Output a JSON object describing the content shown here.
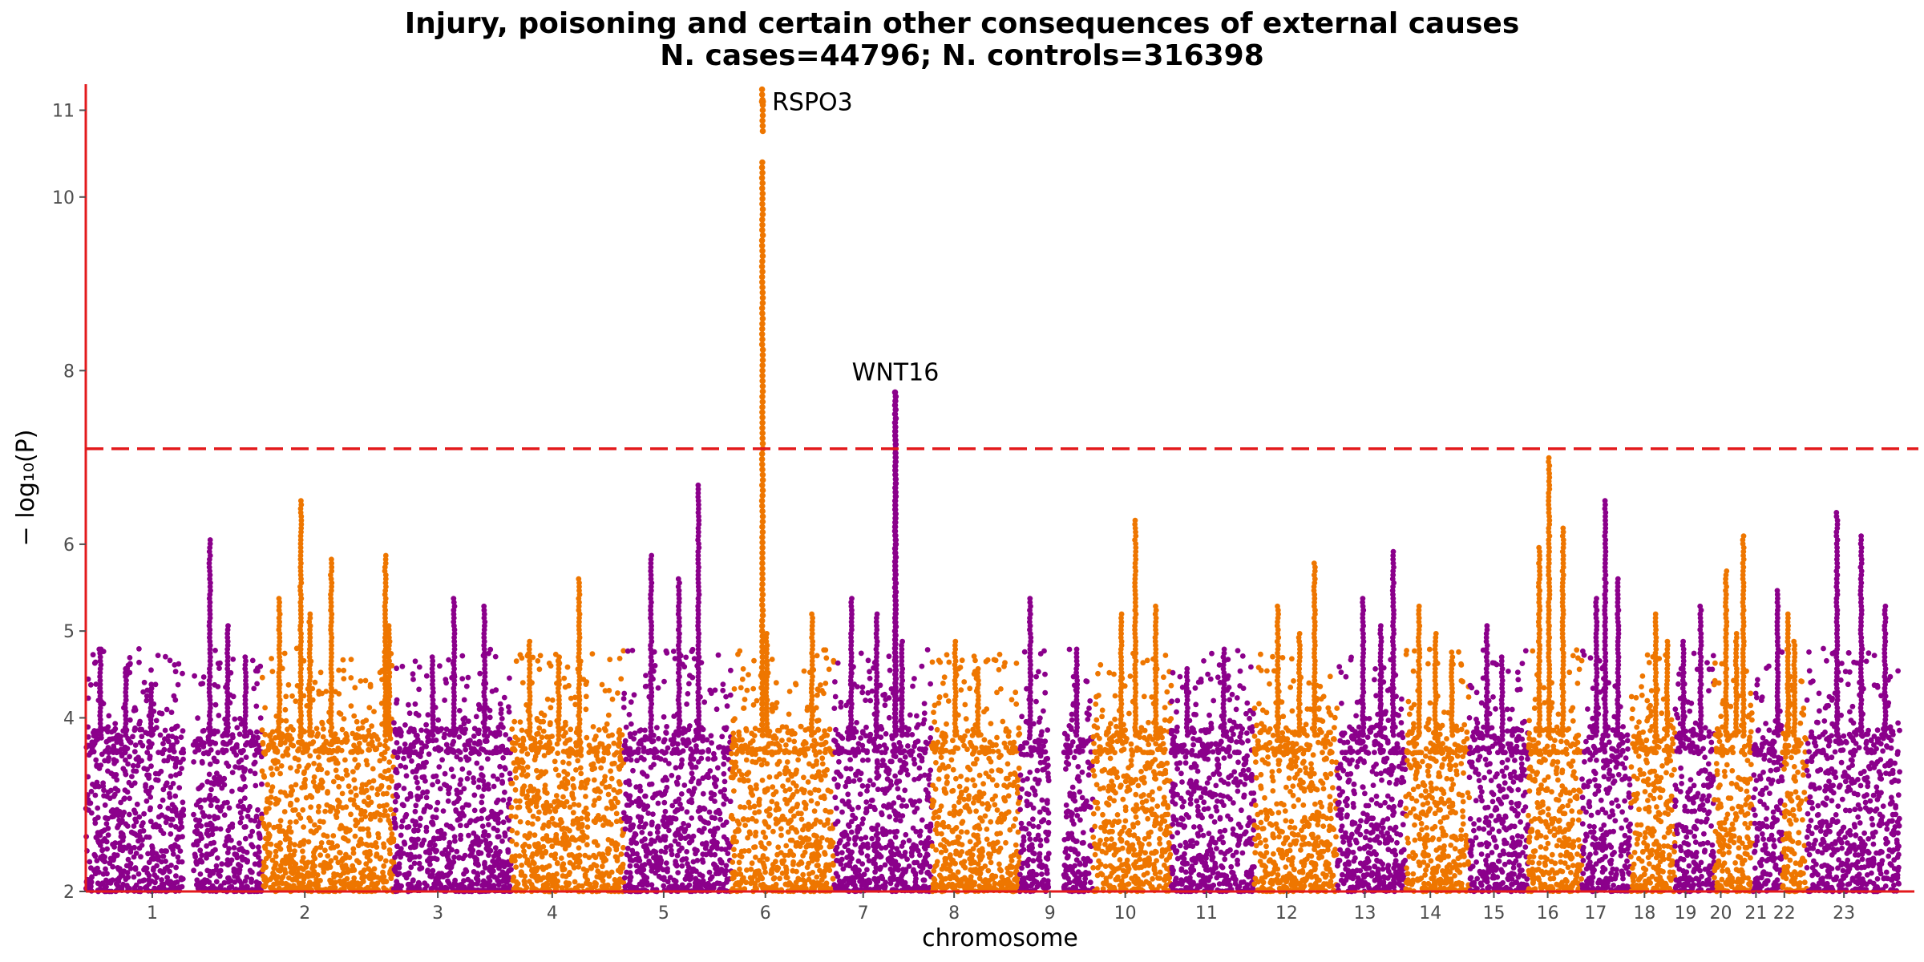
{
  "chart_data": {
    "type": "scatter",
    "subtype": "manhattan",
    "title": "Injury, poisoning and certain other consequences of external causes",
    "subtitle": "N. cases=44796; N. controls=316398",
    "xlabel": "chromosome",
    "ylabel": "− log₁₀(P)",
    "ylim": [
      2,
      11.3
    ],
    "yticks": [
      2,
      4,
      5,
      6,
      8,
      10,
      11
    ],
    "threshold": 7.1,
    "threshold_color": "#e31a1c",
    "axis_color": "#e31a1c",
    "colors": [
      "#8b008b",
      "#ee7600"
    ],
    "chromosomes": [
      {
        "label": "1",
        "start": 0,
        "end": 1,
        "max": 5.0,
        "peaks": [
          4.8,
          4.6,
          4.4
        ]
      },
      {
        "label": "",
        "start": 1.1,
        "end": 1.8,
        "max": 6.05,
        "peaks": [
          6.05,
          5.1,
          4.7
        ]
      },
      {
        "label": "2",
        "start": 1.8,
        "end": 3.0,
        "max": 6.5,
        "peaks": [
          6.5,
          5.85,
          5.4,
          5.2
        ]
      },
      {
        "label": "",
        "start": 3.0,
        "end": 3.15,
        "max": 5.9,
        "peaks": [
          5.9,
          5.1
        ]
      },
      {
        "label": "3",
        "start": 3.15,
        "end": 4.35,
        "max": 5.4,
        "peaks": [
          5.4,
          5.3,
          4.7
        ]
      },
      {
        "label": "4",
        "start": 4.35,
        "end": 5.5,
        "max": 5.6,
        "peaks": [
          5.6,
          4.9,
          4.7
        ]
      },
      {
        "label": "5",
        "start": 5.5,
        "end": 6.6,
        "max": 6.7,
        "peaks": [
          6.7,
          5.9,
          5.6
        ]
      },
      {
        "label": "6",
        "start": 6.6,
        "end": 7.65,
        "max": 11.1,
        "peaks": [
          5.2,
          5.0
        ]
      },
      {
        "label": "7",
        "start": 7.65,
        "end": 8.65,
        "max": 7.75,
        "peaks": [
          5.4,
          5.2,
          4.9
        ]
      },
      {
        "label": "8",
        "start": 8.65,
        "end": 9.55,
        "max": 5.0,
        "peaks": [
          4.9,
          4.6
        ]
      },
      {
        "label": "",
        "start": 9.55,
        "end": 9.85,
        "max": 5.4,
        "peaks": [
          5.4
        ]
      },
      {
        "label": "9",
        "start": 10.0,
        "end": 10.3,
        "max": 4.9,
        "peaks": [
          4.8
        ]
      },
      {
        "label": "10",
        "start": 10.3,
        "end": 11.1,
        "max": 6.3,
        "peaks": [
          6.3,
          5.3,
          5.2
        ]
      },
      {
        "label": "11",
        "start": 11.1,
        "end": 11.95,
        "max": 4.9,
        "peaks": [
          4.8,
          4.6
        ]
      },
      {
        "label": "12",
        "start": 11.95,
        "end": 12.8,
        "max": 5.8,
        "peaks": [
          5.8,
          5.3,
          5.0
        ]
      },
      {
        "label": "13",
        "start": 12.8,
        "end": 13.5,
        "max": 5.95,
        "peaks": [
          5.95,
          5.4,
          5.1
        ]
      },
      {
        "label": "14",
        "start": 13.5,
        "end": 14.15,
        "max": 5.3,
        "peaks": [
          5.3,
          5.0,
          4.7
        ]
      },
      {
        "label": "15",
        "start": 14.15,
        "end": 14.75,
        "max": 5.1,
        "peaks": [
          5.1,
          4.7
        ]
      },
      {
        "label": "16",
        "start": 14.75,
        "end": 15.3,
        "max": 7.0,
        "peaks": [
          7.0,
          6.2,
          6.0
        ]
      },
      {
        "label": "17",
        "start": 15.3,
        "end": 15.8,
        "max": 6.5,
        "peaks": [
          6.5,
          5.6,
          5.4
        ]
      },
      {
        "label": "18",
        "start": 15.8,
        "end": 16.25,
        "max": 5.2,
        "peaks": [
          5.2,
          4.9
        ]
      },
      {
        "label": "19",
        "start": 16.25,
        "end": 16.65,
        "max": 5.3,
        "peaks": [
          5.3,
          4.9
        ]
      },
      {
        "label": "20",
        "start": 16.65,
        "end": 17.05,
        "max": 6.1,
        "peaks": [
          6.1,
          5.7,
          5.0
        ]
      },
      {
        "label": "21",
        "start": 17.05,
        "end": 17.35,
        "max": 5.5,
        "peaks": [
          5.5
        ]
      },
      {
        "label": "22",
        "start": 17.35,
        "end": 17.6,
        "max": 5.2,
        "peaks": [
          5.2,
          4.9
        ]
      },
      {
        "label": "23",
        "start": 17.6,
        "end": 18.55,
        "max": 6.4,
        "peaks": [
          6.4,
          6.1,
          5.3
        ]
      }
    ],
    "labeled_peaks": [
      {
        "gene": "RSPO3",
        "chromosome": "6",
        "y": 11.1
      },
      {
        "gene": "WNT16",
        "chromosome": "7",
        "y": 7.75
      }
    ]
  }
}
